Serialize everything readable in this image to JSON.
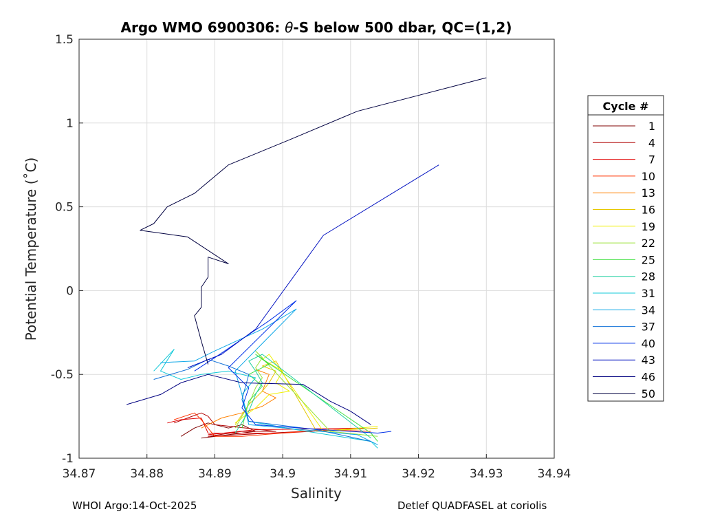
{
  "chart_data": {
    "type": "line",
    "title_prefix": "Argo WMO 6900306: ",
    "title_theta": "θ",
    "title_suffix": "-S below 500 dbar,  QC=(1,2)",
    "xlabel": "Salinity",
    "ylabel": "Potential Temperature (˚C)",
    "xlim": [
      34.87,
      34.94
    ],
    "ylim": [
      -1,
      1.5
    ],
    "x_ticks": [
      "34.87",
      "34.88",
      "34.89",
      "34.9",
      "34.91",
      "34.92",
      "34.93",
      "34.94"
    ],
    "y_ticks": [
      "-1",
      "-0.5",
      "0",
      "0.5",
      "1",
      "1.5"
    ],
    "grid": true,
    "legend_title": "Cycle #",
    "legend_position": "right, outside",
    "series": [
      {
        "name": "1",
        "color": "#800000",
        "points": [
          [
            34.885,
            -0.87
          ],
          [
            34.887,
            -0.82
          ],
          [
            34.889,
            -0.79
          ],
          [
            34.892,
            -0.82
          ],
          [
            34.894,
            -0.8
          ],
          [
            34.896,
            -0.84
          ],
          [
            34.892,
            -0.86
          ],
          [
            34.888,
            -0.88
          ]
        ]
      },
      {
        "name": "4",
        "color": "#b00000",
        "points": [
          [
            34.884,
            -0.79
          ],
          [
            34.886,
            -0.76
          ],
          [
            34.888,
            -0.73
          ],
          [
            34.889,
            -0.75
          ],
          [
            34.89,
            -0.8
          ],
          [
            34.899,
            -0.84
          ],
          [
            34.894,
            -0.84
          ],
          [
            34.889,
            -0.87
          ],
          [
            34.903,
            -0.84
          ]
        ]
      },
      {
        "name": "7",
        "color": "#e00000",
        "points": [
          [
            34.883,
            -0.79
          ],
          [
            34.885,
            -0.77
          ],
          [
            34.888,
            -0.76
          ],
          [
            34.889,
            -0.85
          ],
          [
            34.9,
            -0.85
          ],
          [
            34.912,
            -0.82
          ],
          [
            34.896,
            -0.83
          ],
          [
            34.889,
            -0.86
          ]
        ]
      },
      {
        "name": "10",
        "color": "#ff3300",
        "points": [
          [
            34.884,
            -0.77
          ],
          [
            34.887,
            -0.73
          ],
          [
            34.888,
            -0.77
          ],
          [
            34.89,
            -0.87
          ],
          [
            34.894,
            -0.87
          ],
          [
            34.906,
            -0.83
          ],
          [
            34.913,
            -0.84
          ]
        ]
      },
      {
        "name": "13",
        "color": "#ff8000",
        "points": [
          [
            34.888,
            -0.82
          ],
          [
            34.891,
            -0.76
          ],
          [
            34.894,
            -0.73
          ],
          [
            34.897,
            -0.69
          ],
          [
            34.899,
            -0.64
          ],
          [
            34.897,
            -0.6
          ],
          [
            34.898,
            -0.5
          ],
          [
            34.896,
            -0.47
          ]
        ]
      },
      {
        "name": "16",
        "color": "#e6c800",
        "points": [
          [
            34.893,
            -0.8
          ],
          [
            34.895,
            -0.68
          ],
          [
            34.897,
            -0.6
          ],
          [
            34.898,
            -0.55
          ],
          [
            34.899,
            -0.48
          ],
          [
            34.897,
            -0.45
          ],
          [
            34.899,
            -0.42
          ],
          [
            34.905,
            -0.84
          ],
          [
            34.914,
            -0.82
          ]
        ]
      },
      {
        "name": "19",
        "color": "#f0f000",
        "points": [
          [
            34.893,
            -0.79
          ],
          [
            34.896,
            -0.7
          ],
          [
            34.898,
            -0.62
          ],
          [
            34.901,
            -0.6
          ],
          [
            34.899,
            -0.55
          ],
          [
            34.9,
            -0.48
          ],
          [
            34.897,
            -0.41
          ],
          [
            34.898,
            -0.38
          ],
          [
            34.906,
            -0.84
          ],
          [
            34.914,
            -0.81
          ]
        ]
      },
      {
        "name": "22",
        "color": "#9be33a",
        "points": [
          [
            34.893,
            -0.82
          ],
          [
            34.895,
            -0.68
          ],
          [
            34.896,
            -0.58
          ],
          [
            34.897,
            -0.52
          ],
          [
            34.896,
            -0.46
          ],
          [
            34.897,
            -0.4
          ],
          [
            34.896,
            -0.36
          ],
          [
            34.907,
            -0.84
          ],
          [
            34.914,
            -0.87
          ]
        ]
      },
      {
        "name": "25",
        "color": "#40e040",
        "points": [
          [
            34.894,
            -0.82
          ],
          [
            34.895,
            -0.66
          ],
          [
            34.897,
            -0.57
          ],
          [
            34.895,
            -0.5
          ],
          [
            34.898,
            -0.44
          ],
          [
            34.896,
            -0.38
          ],
          [
            34.913,
            -0.85
          ],
          [
            34.914,
            -0.9
          ]
        ]
      },
      {
        "name": "28",
        "color": "#20d0a0",
        "points": [
          [
            34.893,
            -0.85
          ],
          [
            34.895,
            -0.72
          ],
          [
            34.896,
            -0.62
          ],
          [
            34.897,
            -0.55
          ],
          [
            34.896,
            -0.48
          ],
          [
            34.895,
            -0.42
          ],
          [
            34.897,
            -0.38
          ],
          [
            34.913,
            -0.88
          ]
        ]
      },
      {
        "name": "31",
        "color": "#10c8d8",
        "points": [
          [
            34.881,
            -0.48
          ],
          [
            34.884,
            -0.35
          ],
          [
            34.882,
            -0.48
          ],
          [
            34.885,
            -0.53
          ],
          [
            34.888,
            -0.5
          ],
          [
            34.892,
            -0.48
          ],
          [
            34.896,
            -0.52
          ],
          [
            34.894,
            -0.62
          ],
          [
            34.895,
            -0.78
          ],
          [
            34.902,
            -0.83
          ],
          [
            34.913,
            -0.9
          ],
          [
            34.914,
            -0.94
          ]
        ]
      },
      {
        "name": "34",
        "color": "#10a8e8",
        "points": [
          [
            34.882,
            -0.43
          ],
          [
            34.887,
            -0.42
          ],
          [
            34.89,
            -0.36
          ],
          [
            34.897,
            -0.23
          ],
          [
            34.902,
            -0.11
          ],
          [
            34.893,
            -0.48
          ],
          [
            34.894,
            -0.62
          ],
          [
            34.895,
            -0.8
          ],
          [
            34.911,
            -0.86
          ],
          [
            34.914,
            -0.92
          ]
        ]
      },
      {
        "name": "37",
        "color": "#1070d8",
        "points": [
          [
            34.881,
            -0.53
          ],
          [
            34.886,
            -0.47
          ],
          [
            34.889,
            -0.41
          ],
          [
            34.892,
            -0.45
          ],
          [
            34.895,
            -0.5
          ],
          [
            34.894,
            -0.65
          ],
          [
            34.895,
            -0.78
          ],
          [
            34.905,
            -0.83
          ],
          [
            34.913,
            -0.9
          ]
        ]
      },
      {
        "name": "40",
        "color": "#0030e8",
        "points": [
          [
            34.887,
            -0.48
          ],
          [
            34.89,
            -0.4
          ],
          [
            34.898,
            -0.18
          ],
          [
            34.902,
            -0.06
          ],
          [
            34.892,
            -0.46
          ],
          [
            34.895,
            -0.58
          ],
          [
            34.894,
            -0.7
          ],
          [
            34.896,
            -0.8
          ],
          [
            34.906,
            -0.83
          ],
          [
            34.914,
            -0.85
          ],
          [
            34.916,
            -0.84
          ]
        ]
      },
      {
        "name": "43",
        "color": "#0010c0",
        "points": [
          [
            34.886,
            -0.46
          ],
          [
            34.891,
            -0.38
          ],
          [
            34.896,
            -0.23
          ],
          [
            34.906,
            0.33
          ],
          [
            34.906,
            0.33
          ],
          [
            34.923,
            0.75
          ]
        ]
      },
      {
        "name": "46",
        "color": "#000080",
        "points": [
          [
            34.877,
            -0.68
          ],
          [
            34.882,
            -0.62
          ],
          [
            34.885,
            -0.55
          ],
          [
            34.889,
            -0.5
          ],
          [
            34.894,
            -0.55
          ],
          [
            34.903,
            -0.56
          ],
          [
            34.907,
            -0.66
          ],
          [
            34.91,
            -0.72
          ],
          [
            34.913,
            -0.8
          ]
        ]
      },
      {
        "name": "50",
        "color": "#000040",
        "points": [
          [
            34.889,
            -0.44
          ],
          [
            34.888,
            -0.3
          ],
          [
            34.887,
            -0.15
          ],
          [
            34.888,
            -0.1
          ],
          [
            34.888,
            0.02
          ],
          [
            34.889,
            0.08
          ],
          [
            34.889,
            0.2
          ],
          [
            34.892,
            0.16
          ],
          [
            34.886,
            0.32
          ],
          [
            34.879,
            0.36
          ],
          [
            34.881,
            0.4
          ],
          [
            34.883,
            0.5
          ],
          [
            34.887,
            0.58
          ],
          [
            34.892,
            0.75
          ],
          [
            34.901,
            0.9
          ],
          [
            34.911,
            1.07
          ],
          [
            34.93,
            1.27
          ]
        ]
      }
    ]
  },
  "footer": {
    "left": "WHOI Argo:14-Oct-2025",
    "right": "Detlef QUADFASEL at coriolis"
  }
}
